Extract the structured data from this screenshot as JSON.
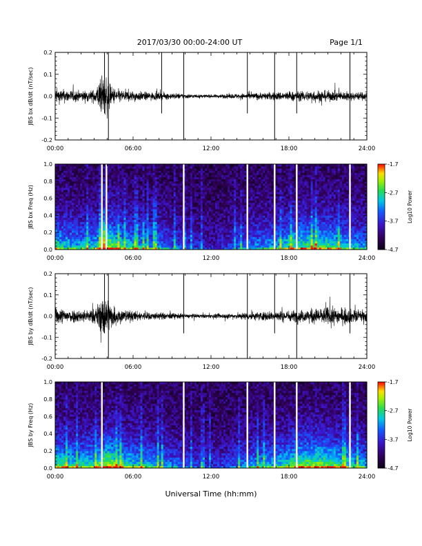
{
  "header": {
    "title": "2017/03/30  00:00-24:00 UT",
    "page": "Page 1/1"
  },
  "xlabel": "Universal Time (hh:mm)",
  "colors": {
    "line": "#000000",
    "background": "#ffffff",
    "gap": "#ffffff"
  },
  "chart_data": [
    {
      "type": "line",
      "title": "",
      "xlabel": "",
      "ylabel": "JBS bx dB/dt (nT/sec)",
      "xlim": [
        0,
        24
      ],
      "ylim": [
        -0.2,
        0.2
      ],
      "x_ticks": [
        "00:00",
        "06:00",
        "12:00",
        "18:00",
        "24:00"
      ],
      "y_ticks": [
        "-0.2",
        "-0.1",
        "0.0",
        "0.1",
        "0.2"
      ],
      "series": [
        {
          "values_note": "",
          "envelope_hours": [
            0,
            1,
            2,
            3,
            3.7,
            4,
            4.3,
            5,
            6,
            7,
            8,
            9,
            10,
            11,
            12,
            13,
            14,
            15,
            16,
            17,
            18,
            19,
            20,
            21,
            22,
            23,
            24
          ],
          "envelope_amplitude": [
            0.07,
            0.06,
            0.05,
            0.06,
            0.2,
            0.2,
            0.09,
            0.06,
            0.05,
            0.04,
            0.035,
            0.03,
            0.025,
            0.015,
            0.015,
            0.02,
            0.025,
            0.03,
            0.035,
            0.04,
            0.045,
            0.045,
            0.06,
            0.05,
            0.045,
            0.04,
            0.04
          ]
        }
      ],
      "spikes_hours": [
        3.8,
        4.1,
        8.2,
        9.9,
        14.8,
        16.9,
        18.6,
        22.7
      ]
    },
    {
      "type": "heatmap",
      "title": "",
      "xlabel": "",
      "ylabel": "JBS bx Freq (Hz)",
      "xlim": [
        0,
        24
      ],
      "ylim": [
        0.0,
        1.0
      ],
      "x_ticks": [
        "00:00",
        "06:00",
        "12:00",
        "18:00",
        "24:00"
      ],
      "y_ticks": [
        "0.0",
        "0.2",
        "0.4",
        "0.6",
        "0.8",
        "1.0"
      ],
      "colorbar": {
        "label": "Log10 Power",
        "min": -4.7,
        "max": -1.7,
        "ticks": [
          "-1.7",
          "-2.7",
          "-3.7",
          "-4.7"
        ]
      },
      "gap_hours": [
        3.6,
        3.95,
        9.9,
        14.8,
        16.9,
        18.6,
        22.7
      ],
      "activity_hours": [
        0,
        1,
        2,
        3,
        4,
        5,
        6,
        7,
        8,
        9,
        10,
        11,
        12,
        13,
        14,
        15,
        16,
        17,
        18,
        19,
        20,
        21,
        22,
        23,
        24
      ],
      "activity_level": [
        0.7,
        0.6,
        0.55,
        0.6,
        0.95,
        0.7,
        0.6,
        0.55,
        0.5,
        0.4,
        0.3,
        0.25,
        0.2,
        0.25,
        0.35,
        0.45,
        0.5,
        0.55,
        0.7,
        0.75,
        0.8,
        0.75,
        0.65,
        0.55,
        0.5
      ]
    },
    {
      "type": "line",
      "title": "",
      "xlabel": "",
      "ylabel": "JBS by dB/dt (nT/sec)",
      "xlim": [
        0,
        24
      ],
      "ylim": [
        -0.2,
        0.2
      ],
      "x_ticks": [
        "00:00",
        "06:00",
        "12:00",
        "18:00",
        "24:00"
      ],
      "y_ticks": [
        "-0.2",
        "-0.1",
        "0.0",
        "0.1",
        "0.2"
      ],
      "series": [
        {
          "values_note": "",
          "envelope_hours": [
            0,
            1,
            2,
            3,
            3.7,
            4,
            4.3,
            5,
            6,
            7,
            8,
            9,
            10,
            11,
            12,
            13,
            14,
            15,
            16,
            17,
            18,
            19,
            20,
            21,
            22,
            23,
            24
          ],
          "envelope_amplitude": [
            0.08,
            0.07,
            0.06,
            0.07,
            0.2,
            0.2,
            0.12,
            0.07,
            0.05,
            0.04,
            0.035,
            0.03,
            0.025,
            0.02,
            0.02,
            0.025,
            0.03,
            0.04,
            0.045,
            0.05,
            0.055,
            0.06,
            0.075,
            0.09,
            0.08,
            0.065,
            0.06
          ]
        }
      ],
      "spikes_hours": [
        3.8,
        4.1,
        9.9,
        14.8,
        16.9,
        18.6,
        22.7
      ]
    },
    {
      "type": "heatmap",
      "title": "",
      "xlabel": "",
      "ylabel": "JBS by Freq (Hz)",
      "xlim": [
        0,
        24
      ],
      "ylim": [
        0.0,
        1.0
      ],
      "x_ticks": [
        "00:00",
        "06:00",
        "12:00",
        "18:00",
        "24:00"
      ],
      "y_ticks": [
        "0.0",
        "0.2",
        "0.4",
        "0.6",
        "0.8",
        "1.0"
      ],
      "colorbar": {
        "label": "Log10 Power",
        "min": -4.7,
        "max": -1.7,
        "ticks": [
          "-1.7",
          "-2.7",
          "-3.7",
          "-4.7"
        ]
      },
      "gap_hours": [
        3.6,
        9.9,
        14.8,
        16.9,
        18.6,
        22.7
      ],
      "activity_hours": [
        0,
        1,
        2,
        3,
        4,
        5,
        6,
        7,
        8,
        9,
        10,
        11,
        12,
        13,
        14,
        15,
        16,
        17,
        18,
        19,
        20,
        21,
        22,
        23,
        24
      ],
      "activity_level": [
        0.75,
        0.7,
        0.65,
        0.7,
        0.95,
        0.75,
        0.65,
        0.6,
        0.55,
        0.45,
        0.35,
        0.3,
        0.25,
        0.3,
        0.4,
        0.5,
        0.55,
        0.6,
        0.7,
        0.8,
        0.85,
        0.8,
        0.7,
        0.6,
        0.55
      ]
    }
  ]
}
